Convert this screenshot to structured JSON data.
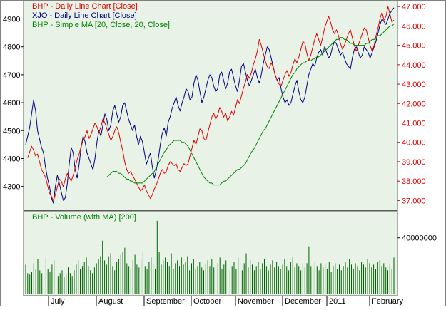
{
  "colors": {
    "price_panel_bg": "#e8f2e6",
    "volume_panel_bg": "#e8f2e6",
    "frame": "#5a5a5a",
    "xjo": "#000080",
    "bhp": "#e00000",
    "ma": "#008000",
    "volume": "#006400"
  },
  "chart_data": [
    {
      "type": "line",
      "panel": "price",
      "legend": [
        {
          "text": "BHP - Daily Line Chart [Close]",
          "color": "#e00000"
        },
        {
          "text": "XJO - Daily Line Chart [Close]",
          "color": "#000080"
        },
        {
          "text": "BHP - Simple MA [20, Close, 20, Close]",
          "color": "#008000"
        }
      ],
      "legend_placement": "top-left",
      "x_tick_labels": [
        "July",
        "August",
        "September",
        "October",
        "November",
        "December",
        "2011",
        "February"
      ],
      "left_axis": {
        "ticks": [
          4300,
          4400,
          4500,
          4600,
          4700,
          4800,
          4900
        ],
        "ylim": [
          4215,
          4965
        ]
      },
      "right_axis": {
        "ticks": [
          "37.000",
          "38.000",
          "39.000",
          "40.000",
          "41.000",
          "42.000",
          "43.000",
          "44.000",
          "45.000",
          "46.000",
          "47.000"
        ],
        "ylim": [
          36.5,
          47.3
        ]
      },
      "series": [
        {
          "name": "XJO - Daily Line Chart [Close]",
          "axis": "left",
          "values": [
            4450,
            4480,
            4510,
            4560,
            4610,
            4570,
            4500,
            4470,
            4440,
            4420,
            4370,
            4330,
            4300,
            4260,
            4240,
            4300,
            4340,
            4310,
            4280,
            4250,
            4260,
            4310,
            4380,
            4440,
            4420,
            4360,
            4330,
            4380,
            4440,
            4480,
            4460,
            4420,
            4400,
            4380,
            4360,
            4400,
            4460,
            4500,
            4480,
            4520,
            4560,
            4540,
            4500,
            4520,
            4570,
            4590,
            4560,
            4530,
            4550,
            4590,
            4600,
            4570,
            4540,
            4520,
            4500,
            4520,
            4480,
            4450,
            4480,
            4460,
            4420,
            4380,
            4400,
            4420,
            4370,
            4330,
            4360,
            4400,
            4450,
            4490,
            4510,
            4480,
            4530,
            4550,
            4580,
            4600,
            4620,
            4590,
            4570,
            4600,
            4620,
            4650,
            4640,
            4610,
            4620,
            4670,
            4700,
            4680,
            4640,
            4600,
            4620,
            4650,
            4680,
            4700,
            4690,
            4660,
            4640,
            4650,
            4700,
            4710,
            4680,
            4650,
            4670,
            4710,
            4720,
            4690,
            4660,
            4640,
            4680,
            4730,
            4740,
            4710,
            4680,
            4660,
            4680,
            4700,
            4720,
            4690,
            4670,
            4700,
            4740,
            4770,
            4800,
            4790,
            4760,
            4730,
            4700,
            4680,
            4690,
            4650,
            4620,
            4600,
            4610,
            4590,
            4600,
            4630,
            4660,
            4680,
            4640,
            4610,
            4600,
            4620,
            4660,
            4700,
            4720,
            4740,
            4730,
            4760,
            4780,
            4790,
            4770,
            4800,
            4780,
            4760,
            4770,
            4800,
            4820,
            4810,
            4790,
            4770,
            4780,
            4760,
            4740,
            4730,
            4720,
            4760,
            4790,
            4800,
            4780,
            4760,
            4770,
            4800,
            4790,
            4780,
            4760,
            4780,
            4800,
            4820,
            4850,
            4880,
            4900,
            4890,
            4880,
            4900,
            4920,
            4930,
            4940
          ]
        },
        {
          "name": "BHP - Daily Line Chart [Close]",
          "axis": "right",
          "values": [
            39.2,
            39.5,
            39.8,
            39.6,
            39.3,
            39.4,
            39.0,
            38.6,
            38.4,
            38.2,
            37.8,
            37.4,
            37.2,
            37.0,
            37.3,
            37.7,
            38.1,
            38.0,
            37.7,
            38.1,
            38.4,
            38.2,
            38.0,
            38.3,
            38.7,
            39.1,
            39.4,
            39.8,
            40.1,
            40.3,
            40.6,
            40.2,
            40.4,
            40.7,
            41.0,
            40.8,
            40.5,
            40.8,
            41.2,
            41.0,
            40.7,
            40.4,
            40.1,
            40.3,
            40.6,
            40.8,
            40.5,
            40.0,
            39.6,
            39.0,
            38.6,
            38.4,
            38.5,
            38.3,
            38.1,
            37.9,
            37.7,
            37.5,
            37.6,
            37.8,
            37.5,
            37.3,
            37.1,
            37.3,
            37.6,
            37.8,
            38.1,
            38.4,
            38.6,
            38.4,
            38.5,
            38.8,
            39.0,
            38.9,
            38.8,
            38.9,
            38.6,
            38.5,
            38.7,
            38.9,
            38.8,
            38.9,
            39.3,
            39.7,
            40.1,
            39.9,
            40.3,
            40.7,
            40.6,
            40.2,
            40.1,
            40.5,
            40.9,
            41.3,
            41.5,
            41.2,
            41.4,
            41.8,
            41.6,
            41.3,
            41.5,
            41.1,
            41.3,
            41.6,
            41.4,
            41.8,
            42.2,
            42.0,
            42.4,
            42.8,
            43.1,
            43.5,
            43.3,
            43.6,
            44.0,
            44.3,
            44.7,
            45.3,
            45.0,
            44.6,
            44.2,
            43.9,
            43.8,
            44.1,
            43.9,
            43.5,
            43.2,
            43.0,
            42.9,
            43.2,
            43.5,
            43.7,
            43.4,
            43.6,
            44.0,
            44.3,
            44.1,
            44.4,
            44.8,
            45.2,
            45.1,
            44.6,
            44.2,
            44.5,
            44.9,
            45.3,
            45.6,
            45.3,
            45.0,
            45.4,
            45.9,
            46.2,
            46.5,
            46.2,
            45.8,
            45.6,
            45.8,
            45.5,
            45.1,
            44.8,
            45.0,
            45.3,
            45.6,
            45.8,
            45.4,
            45.0,
            44.7,
            45.0,
            45.3,
            45.6,
            45.9,
            45.8,
            45.4,
            45.0,
            44.7,
            45.0,
            45.5,
            45.9,
            46.4,
            46.7,
            46.3,
            46.5,
            47.0,
            46.6,
            46.2,
            46.3
          ]
        },
        {
          "name": "BHP - Simple MA [20, Close, 20, Close]",
          "axis": "right",
          "values": [
            38.2,
            38.3,
            38.4,
            38.5,
            38.5,
            38.5,
            38.4,
            38.4,
            38.3,
            38.2,
            38.1,
            38.1,
            38.0,
            38.0,
            37.9,
            37.9,
            37.9,
            37.9,
            37.9,
            38.0,
            38.1,
            38.2,
            38.3,
            38.4,
            38.5,
            38.7,
            38.9,
            39.1,
            39.3,
            39.5,
            39.6,
            39.8,
            39.9,
            40.0,
            40.1,
            40.1,
            40.1,
            40.1,
            40.0,
            40.0,
            39.9,
            39.8,
            39.6,
            39.4,
            39.2,
            39.0,
            38.8,
            38.6,
            38.4,
            38.2,
            38.1,
            38.0,
            37.9,
            37.9,
            37.8,
            37.8,
            37.8,
            37.8,
            37.9,
            38.0,
            38.0,
            38.1,
            38.2,
            38.3,
            38.4,
            38.5,
            38.6,
            38.6,
            38.7,
            38.8,
            38.9,
            39.1,
            39.3,
            39.5,
            39.6,
            39.8,
            40.0,
            40.2,
            40.4,
            40.6,
            40.7,
            40.9,
            41.1,
            41.3,
            41.5,
            41.7,
            41.9,
            42.1,
            42.3,
            42.5,
            42.7,
            42.9,
            43.1,
            43.3,
            43.5,
            43.6,
            43.8,
            43.9,
            44.0,
            44.1,
            44.1,
            44.2,
            44.2,
            44.2,
            44.3,
            44.3,
            44.4,
            44.4,
            44.5,
            44.6,
            44.7,
            44.8,
            44.9,
            45.0,
            45.1,
            45.2,
            45.3,
            45.3,
            45.4,
            45.4,
            45.3,
            45.3,
            45.2,
            45.1,
            45.1,
            45.0,
            45.0,
            45.0,
            45.0,
            45.0,
            45.0,
            45.1,
            45.1,
            45.2,
            45.3,
            45.3,
            45.4,
            45.5,
            45.5,
            45.6,
            45.7,
            45.8,
            45.9,
            46.0,
            46.0,
            46.1
          ]
        }
      ]
    },
    {
      "type": "bar",
      "panel": "volume",
      "legend": [
        {
          "text": "BHP - Volume (with MA) [200]",
          "color": "#008000"
        }
      ],
      "legend_placement": "top-left",
      "right_axis": {
        "ticks": [
          "40000000"
        ],
        "ylim": [
          0,
          58000000
        ]
      },
      "values": [
        21000000,
        15000000,
        14000000,
        16000000,
        22000000,
        18000000,
        25000000,
        17000000,
        15000000,
        20000000,
        26000000,
        18000000,
        16000000,
        21000000,
        24000000,
        19000000,
        13000000,
        15000000,
        17000000,
        12000000,
        14000000,
        19000000,
        15000000,
        13000000,
        17000000,
        21000000,
        24000000,
        18000000,
        20000000,
        23000000,
        26000000,
        20000000,
        17000000,
        15000000,
        19000000,
        22000000,
        25000000,
        27000000,
        38000000,
        24000000,
        21000000,
        27000000,
        29000000,
        20000000,
        17000000,
        23000000,
        25000000,
        28000000,
        30000000,
        33000000,
        22000000,
        20000000,
        18000000,
        24000000,
        28000000,
        21000000,
        19000000,
        25000000,
        30000000,
        20000000,
        18000000,
        23000000,
        26000000,
        22000000,
        18000000,
        52000000,
        30000000,
        21000000,
        24000000,
        26000000,
        23000000,
        20000000,
        29000000,
        18000000,
        22000000,
        24000000,
        20000000,
        26000000,
        21000000,
        23000000,
        27000000,
        17000000,
        22000000,
        25000000,
        18000000,
        20000000,
        23000000,
        19000000,
        17000000,
        21000000,
        24000000,
        20000000,
        25000000,
        19000000,
        16000000,
        22000000,
        26000000,
        18000000,
        21000000,
        24000000,
        19000000,
        17000000,
        20000000,
        23000000,
        18000000,
        26000000,
        20000000,
        17000000,
        22000000,
        29000000,
        19000000,
        24000000,
        21000000,
        17000000,
        20000000,
        23000000,
        18000000,
        22000000,
        25000000,
        20000000,
        17000000,
        21000000,
        24000000,
        19000000,
        23000000,
        20000000,
        18000000,
        21000000,
        25000000,
        20000000,
        17000000,
        23000000,
        26000000,
        19000000,
        22000000,
        20000000,
        17000000,
        21000000,
        19000000,
        22000000,
        34000000,
        20000000,
        18000000,
        23000000,
        20000000,
        17000000,
        22000000,
        19000000,
        21000000,
        18000000,
        23000000,
        16000000,
        20000000,
        22000000,
        18000000,
        21000000,
        17000000,
        20000000,
        23000000,
        19000000,
        25000000,
        21000000,
        18000000,
        22000000,
        20000000,
        17000000,
        23000000,
        21000000,
        19000000,
        25000000,
        22000000,
        19000000,
        21000000,
        18000000,
        23000000,
        24000000,
        20000000,
        22000000,
        19000000,
        17000000,
        21000000,
        18000000,
        26000000
      ]
    }
  ]
}
